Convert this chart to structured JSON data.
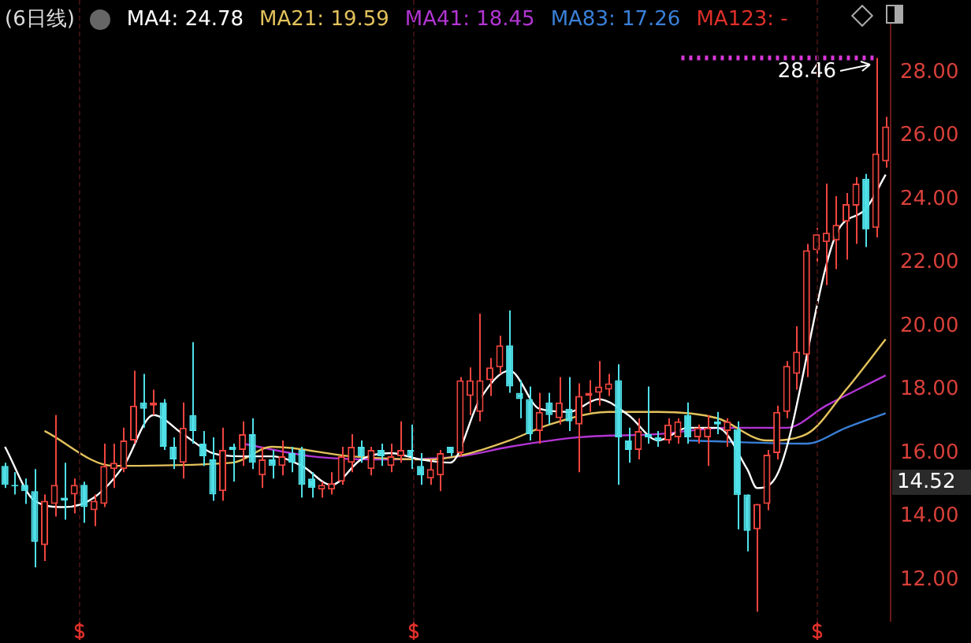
{
  "chart_data": {
    "type": "candlestick",
    "title": "(6日线)",
    "categories": [
      null,
      null,
      null,
      null,
      null,
      null,
      null,
      null,
      null,
      null,
      null,
      null,
      null,
      null,
      null,
      null,
      null,
      null,
      null,
      null,
      null,
      null,
      null,
      null,
      null,
      null,
      null,
      null,
      null,
      null,
      null,
      null,
      null,
      null,
      null,
      null,
      null,
      null,
      null,
      null,
      null,
      null,
      null,
      null,
      null,
      null,
      null,
      null,
      null,
      null,
      null,
      null,
      null,
      null,
      null,
      null,
      null,
      null,
      null,
      null,
      null,
      null,
      null,
      null,
      null,
      null,
      null,
      null,
      null,
      null,
      null,
      null,
      null,
      null,
      null,
      null,
      null,
      null,
      null,
      null,
      null,
      null,
      null,
      null,
      null,
      null,
      null,
      null,
      null,
      null
    ],
    "ohlc": [
      [
        15.6,
        15.7,
        14.9,
        15.0
      ],
      [
        15.0,
        15.4,
        14.7,
        14.95
      ],
      [
        15.0,
        15.2,
        14.4,
        14.8
      ],
      [
        14.8,
        15.5,
        12.4,
        13.2
      ],
      [
        13.1,
        14.7,
        12.6,
        14.5
      ],
      [
        14.4,
        17.2,
        14.0,
        15.0
      ],
      [
        14.6,
        15.7,
        13.9,
        14.5
      ],
      [
        14.7,
        15.2,
        14.1,
        15.0
      ],
      [
        15.0,
        15.1,
        13.8,
        14.3
      ],
      [
        14.2,
        14.7,
        13.7,
        14.5
      ],
      [
        14.4,
        16.3,
        14.3,
        15.6
      ],
      [
        15.5,
        16.3,
        14.9,
        15.7
      ],
      [
        15.5,
        16.8,
        15.4,
        16.4
      ],
      [
        16.4,
        18.6,
        16.3,
        17.5
      ],
      [
        17.6,
        18.5,
        16.8,
        17.4
      ],
      [
        17.5,
        18.0,
        17.2,
        17.6
      ],
      [
        17.6,
        17.7,
        16.1,
        16.2
      ],
      [
        16.2,
        16.5,
        15.5,
        15.8
      ],
      [
        15.7,
        17.6,
        15.2,
        16.8
      ],
      [
        17.2,
        19.5,
        16.3,
        16.7
      ],
      [
        16.3,
        16.7,
        15.6,
        15.9
      ],
      [
        15.8,
        16.5,
        14.5,
        14.7
      ],
      [
        14.8,
        16.8,
        14.5,
        16.1
      ],
      [
        16.2,
        16.3,
        15.1,
        16.1
      ],
      [
        16.1,
        17.0,
        15.6,
        16.6
      ],
      [
        16.6,
        17.1,
        15.5,
        15.7
      ],
      [
        15.3,
        16.2,
        14.9,
        15.8
      ],
      [
        15.8,
        16.1,
        15.2,
        15.6
      ],
      [
        15.6,
        16.4,
        15.3,
        15.9
      ],
      [
        16.0,
        16.2,
        15.4,
        15.7
      ],
      [
        16.1,
        16.2,
        14.6,
        15.0
      ],
      [
        15.2,
        15.4,
        14.6,
        14.9
      ],
      [
        14.85,
        15.1,
        14.6,
        15.0
      ],
      [
        14.85,
        15.4,
        14.7,
        15.05
      ],
      [
        15.1,
        16.2,
        15.0,
        15.9
      ],
      [
        15.7,
        16.6,
        15.4,
        16.2
      ],
      [
        16.2,
        16.4,
        15.7,
        15.9
      ],
      [
        15.5,
        16.2,
        15.3,
        16.1
      ],
      [
        16.1,
        16.3,
        15.6,
        15.9
      ],
      [
        15.6,
        16.3,
        15.4,
        15.9
      ],
      [
        15.9,
        17.0,
        15.7,
        16.1
      ],
      [
        16.1,
        16.9,
        15.5,
        15.9
      ],
      [
        15.6,
        16.0,
        15.0,
        15.3
      ],
      [
        15.2,
        15.8,
        15.0,
        15.5
      ],
      [
        15.3,
        16.1,
        14.8,
        16.0
      ],
      [
        16.2,
        16.2,
        15.9,
        16.0
      ],
      [
        16.0,
        18.4,
        15.9,
        18.3
      ],
      [
        17.8,
        18.7,
        17.2,
        18.3
      ],
      [
        17.3,
        20.4,
        17.0,
        18.3
      ],
      [
        18.3,
        19.0,
        17.8,
        18.7
      ],
      [
        18.7,
        19.7,
        18.5,
        19.4
      ],
      [
        19.4,
        20.5,
        17.9,
        18.1
      ],
      [
        17.9,
        18.3,
        17.1,
        17.7
      ],
      [
        17.7,
        18.1,
        16.4,
        16.6
      ],
      [
        16.7,
        17.9,
        16.3,
        17.3
      ],
      [
        17.6,
        17.9,
        16.9,
        17.2
      ],
      [
        17.1,
        18.4,
        16.9,
        17.6
      ],
      [
        17.4,
        18.4,
        16.7,
        17.0
      ],
      [
        16.9,
        18.2,
        15.4,
        17.8
      ],
      [
        17.8,
        18.3,
        17.3,
        17.9
      ],
      [
        17.9,
        18.9,
        17.5,
        18.1
      ],
      [
        18.0,
        18.5,
        17.8,
        18.2
      ],
      [
        18.3,
        18.8,
        15.0,
        16.5
      ],
      [
        16.4,
        16.8,
        15.7,
        16.1
      ],
      [
        16.1,
        17.1,
        15.8,
        16.7
      ],
      [
        16.6,
        18.1,
        16.3,
        16.5
      ],
      [
        16.5,
        16.7,
        16.2,
        16.4
      ],
      [
        16.4,
        17.1,
        16.3,
        16.9
      ],
      [
        16.5,
        17.1,
        16.3,
        17.0
      ],
      [
        17.2,
        17.6,
        16.3,
        16.5
      ],
      [
        16.5,
        16.9,
        16.3,
        16.8
      ],
      [
        16.5,
        17.2,
        15.6,
        16.8
      ],
      [
        17.0,
        17.3,
        16.6,
        16.9
      ],
      [
        16.7,
        17.1,
        16.2,
        17.0
      ],
      [
        16.75,
        17.0,
        13.6,
        14.68
      ],
      [
        14.7,
        14.7,
        12.9,
        13.55
      ],
      [
        13.6,
        14.4,
        11.0,
        14.4
      ],
      [
        14.4,
        16.1,
        14.2,
        15.95
      ],
      [
        16.0,
        17.5,
        15.8,
        17.3
      ],
      [
        17.3,
        18.9,
        17.1,
        18.75
      ],
      [
        18.5,
        20.0,
        18.0,
        19.2
      ],
      [
        19.1,
        22.6,
        18.4,
        22.4
      ],
      [
        22.4,
        23.1,
        21.9,
        22.9
      ],
      [
        22.65,
        24.5,
        21.3,
        22.95
      ],
      [
        22.7,
        24.1,
        21.8,
        23.2
      ],
      [
        23.3,
        24.2,
        22.1,
        23.85
      ],
      [
        23.8,
        24.7,
        22.6,
        24.5
      ],
      [
        24.65,
        24.8,
        22.5,
        23.05
      ],
      [
        23.1,
        28.46,
        22.8,
        25.45
      ],
      [
        25.2,
        26.6,
        25.0,
        26.3
      ]
    ],
    "colors": [
      "#4fe0e8",
      "#4fe0e8",
      "#4fe0e8",
      "#4fe0e8",
      "#f0453f",
      "#f0453f",
      "#4fe0e8",
      "#f0453f",
      "#4fe0e8",
      "#f0453f",
      "#f0453f",
      "#f0453f",
      "#f0453f",
      "#f0453f",
      "#4fe0e8",
      "#f0453f",
      "#4fe0e8",
      "#4fe0e8",
      "#f0453f",
      "#4fe0e8",
      "#4fe0e8",
      "#4fe0e8",
      "#f0453f",
      "#4fe0e8",
      "#f0453f",
      "#4fe0e8",
      "#f0453f",
      "#4fe0e8",
      "#f0453f",
      "#4fe0e8",
      "#4fe0e8",
      "#4fe0e8",
      "#f0453f",
      "#f0453f",
      "#f0453f",
      "#f0453f",
      "#4fe0e8",
      "#f0453f",
      "#4fe0e8",
      "#f0453f",
      "#f0453f",
      "#4fe0e8",
      "#4fe0e8",
      "#f0453f",
      "#f0453f",
      "#4fe0e8",
      "#f0453f",
      "#f0453f",
      "#f0453f",
      "#f0453f",
      "#f0453f",
      "#4fe0e8",
      "#4fe0e8",
      "#4fe0e8",
      "#f0453f",
      "#4fe0e8",
      "#f0453f",
      "#4fe0e8",
      "#f0453f",
      "#f0453f",
      "#f0453f",
      "#f0453f",
      "#4fe0e8",
      "#4fe0e8",
      "#f0453f",
      "#4fe0e8",
      "#4fe0e8",
      "#f0453f",
      "#f0453f",
      "#4fe0e8",
      "#f0453f",
      "#f0453f",
      "#4fe0e8",
      "#f0453f",
      "#4fe0e8",
      "#4fe0e8",
      "#f0453f",
      "#f0453f",
      "#f0453f",
      "#f0453f",
      "#f0453f",
      "#f0453f",
      "#f0453f",
      "#f0453f",
      "#f0453f",
      "#f0453f",
      "#f0453f",
      "#4fe0e8",
      "#f0453f",
      "#f0453f"
    ],
    "series": [
      {
        "type": "line",
        "name": "MA4: 24.78",
        "color": "#ffffff",
        "values": [
          16.2,
          null,
          null,
          14.5,
          null,
          null,
          14.3,
          null,
          null,
          14.6,
          null,
          null,
          15.6,
          null,
          null,
          17.2,
          null,
          null,
          16.6,
          null,
          null,
          16.0,
          null,
          null,
          15.9,
          null,
          null,
          15.9,
          null,
          null,
          15.6,
          null,
          null,
          15.0,
          null,
          null,
          15.8,
          null,
          null,
          16.0,
          null,
          null,
          15.8,
          null,
          null,
          15.7,
          null,
          null,
          17.7,
          null,
          null,
          18.6,
          null,
          null,
          17.4,
          null,
          null,
          17.3,
          null,
          null,
          17.7,
          null,
          null,
          17.2,
          null,
          null,
          16.4,
          null,
          null,
          16.8,
          null,
          null,
          16.8,
          null,
          null,
          15.5,
          14.9,
          null,
          15.3,
          null,
          null,
          null,
          null,
          null,
          22.9,
          null,
          null,
          23.7,
          null,
          24.78
        ]
      },
      {
        "type": "line",
        "name": "MA21: 19.59",
        "color": "#e3c25c",
        "values": [
          null,
          null,
          null,
          null,
          16.7,
          null,
          null,
          null,
          null,
          null,
          null,
          15.6,
          null,
          null,
          null,
          null,
          null,
          null,
          null,
          null,
          null,
          null,
          null,
          15.7,
          null,
          null,
          null,
          16.2,
          null,
          null,
          null,
          null,
          null,
          null,
          null,
          15.9,
          null,
          null,
          null,
          null,
          null,
          null,
          null,
          15.8,
          null,
          null,
          null,
          16.0,
          null,
          null,
          null,
          16.4,
          null,
          null,
          null,
          16.9,
          null,
          null,
          null,
          null,
          null,
          17.3,
          null,
          null,
          null,
          null,
          17.3,
          null,
          null,
          null,
          null,
          null,
          17.1,
          null,
          null,
          null,
          null,
          16.4,
          null,
          null,
          null,
          16.6,
          null,
          null,
          null,
          18.0,
          null,
          null,
          null,
          19.59
        ]
      },
      {
        "type": "line",
        "name": "MA41: 18.45",
        "color": "#b335d4",
        "values": [
          null,
          null,
          null,
          null,
          null,
          null,
          null,
          null,
          null,
          null,
          null,
          null,
          null,
          null,
          null,
          null,
          null,
          null,
          null,
          null,
          null,
          null,
          null,
          null,
          16.3,
          null,
          null,
          null,
          null,
          null,
          null,
          15.9,
          null,
          null,
          null,
          null,
          null,
          null,
          15.8,
          null,
          null,
          null,
          null,
          null,
          null,
          null,
          15.9,
          null,
          null,
          null,
          null,
          16.2,
          null,
          null,
          null,
          null,
          null,
          null,
          16.5,
          null,
          null,
          null,
          null,
          null,
          null,
          null,
          16.6,
          null,
          null,
          null,
          null,
          null,
          null,
          16.8,
          null,
          null,
          null,
          null,
          null,
          16.8,
          null,
          null,
          null,
          17.5,
          null,
          null,
          null,
          null,
          null,
          18.45
        ]
      },
      {
        "type": "line",
        "name": "MA83: 17.26",
        "color": "#3a80d8",
        "values": [
          null,
          null,
          null,
          null,
          null,
          null,
          null,
          null,
          null,
          null,
          null,
          null,
          null,
          null,
          null,
          null,
          null,
          null,
          null,
          null,
          null,
          null,
          null,
          null,
          null,
          null,
          null,
          null,
          null,
          null,
          null,
          null,
          null,
          null,
          null,
          null,
          null,
          null,
          null,
          null,
          null,
          null,
          null,
          null,
          null,
          null,
          null,
          null,
          null,
          null,
          null,
          null,
          null,
          null,
          null,
          null,
          null,
          null,
          null,
          null,
          null,
          null,
          null,
          null,
          null,
          null,
          null,
          null,
          null,
          16.4,
          null,
          null,
          null,
          null,
          null,
          null,
          null,
          null,
          null,
          null,
          null,
          16.3,
          null,
          null,
          null,
          16.8,
          null,
          null,
          null,
          17.26
        ]
      }
    ],
    "ylim": [
      10.7,
      29.6
    ],
    "yticks": [
      {
        "value": 12,
        "label": "12.00"
      },
      {
        "value": 14,
        "label": "14.00"
      },
      {
        "value": 16,
        "label": "16.00"
      },
      {
        "value": 18,
        "label": "18.00"
      },
      {
        "value": 20,
        "label": "20.00"
      },
      {
        "value": 22,
        "label": "22.00"
      },
      {
        "value": 24,
        "label": "24.00"
      },
      {
        "value": 26,
        "label": "26.00"
      },
      {
        "value": 28,
        "label": "28.00"
      }
    ],
    "grid": false,
    "ref_lines": [
      {
        "axis": "y",
        "value": 28.46,
        "color": "#d838d8",
        "line_style": "dotted"
      }
    ],
    "annotations": [
      "MA123: -",
      "28.46",
      "14.52"
    ]
  }
}
